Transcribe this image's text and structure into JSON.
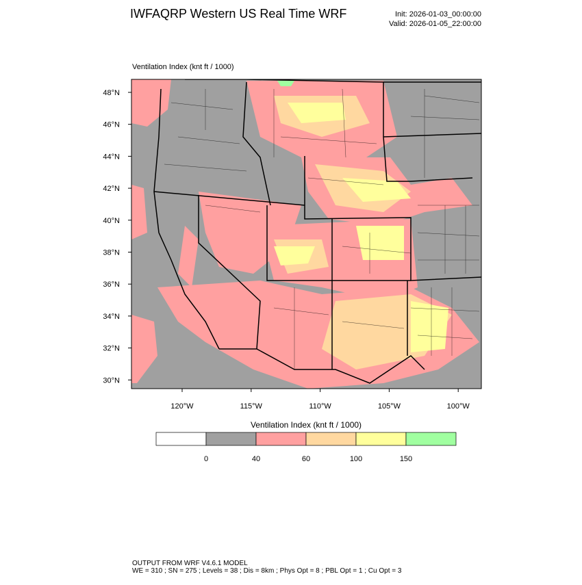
{
  "header": {
    "title": "IWFAQRP Western US Real Time WRF",
    "init": "Init: 2026-01-03_00:00:00",
    "valid": "Valid: 2026-01-05_22:00:00"
  },
  "map": {
    "field_label": "Ventilation Index   (knt ft / 1000)",
    "lat_labels": [
      "48°N",
      "46°N",
      "44°N",
      "42°N",
      "40°N",
      "38°N",
      "36°N",
      "34°N",
      "32°N",
      "30°N"
    ],
    "lon_labels": [
      "120°W",
      "115°W",
      "110°W",
      "105°W",
      "100°W"
    ]
  },
  "colorbar": {
    "title": "Ventilation Index  (knt ft / 1000)",
    "colors": [
      "#ffffff",
      "#a0a0a0",
      "#ffa0a0",
      "#ffd8a0",
      "#ffff9c",
      "#a0ffa0"
    ],
    "levels": [
      0,
      40,
      60,
      100,
      150
    ]
  },
  "footer": {
    "line1": "OUTPUT FROM WRF V4.6.1 MODEL",
    "line2": "WE = 310 ; SN = 275 ; Levels = 38 ; Dis = 8km ; Phys Opt = 8 ; PBL Opt = 1 ; Cu Opt = 3"
  }
}
